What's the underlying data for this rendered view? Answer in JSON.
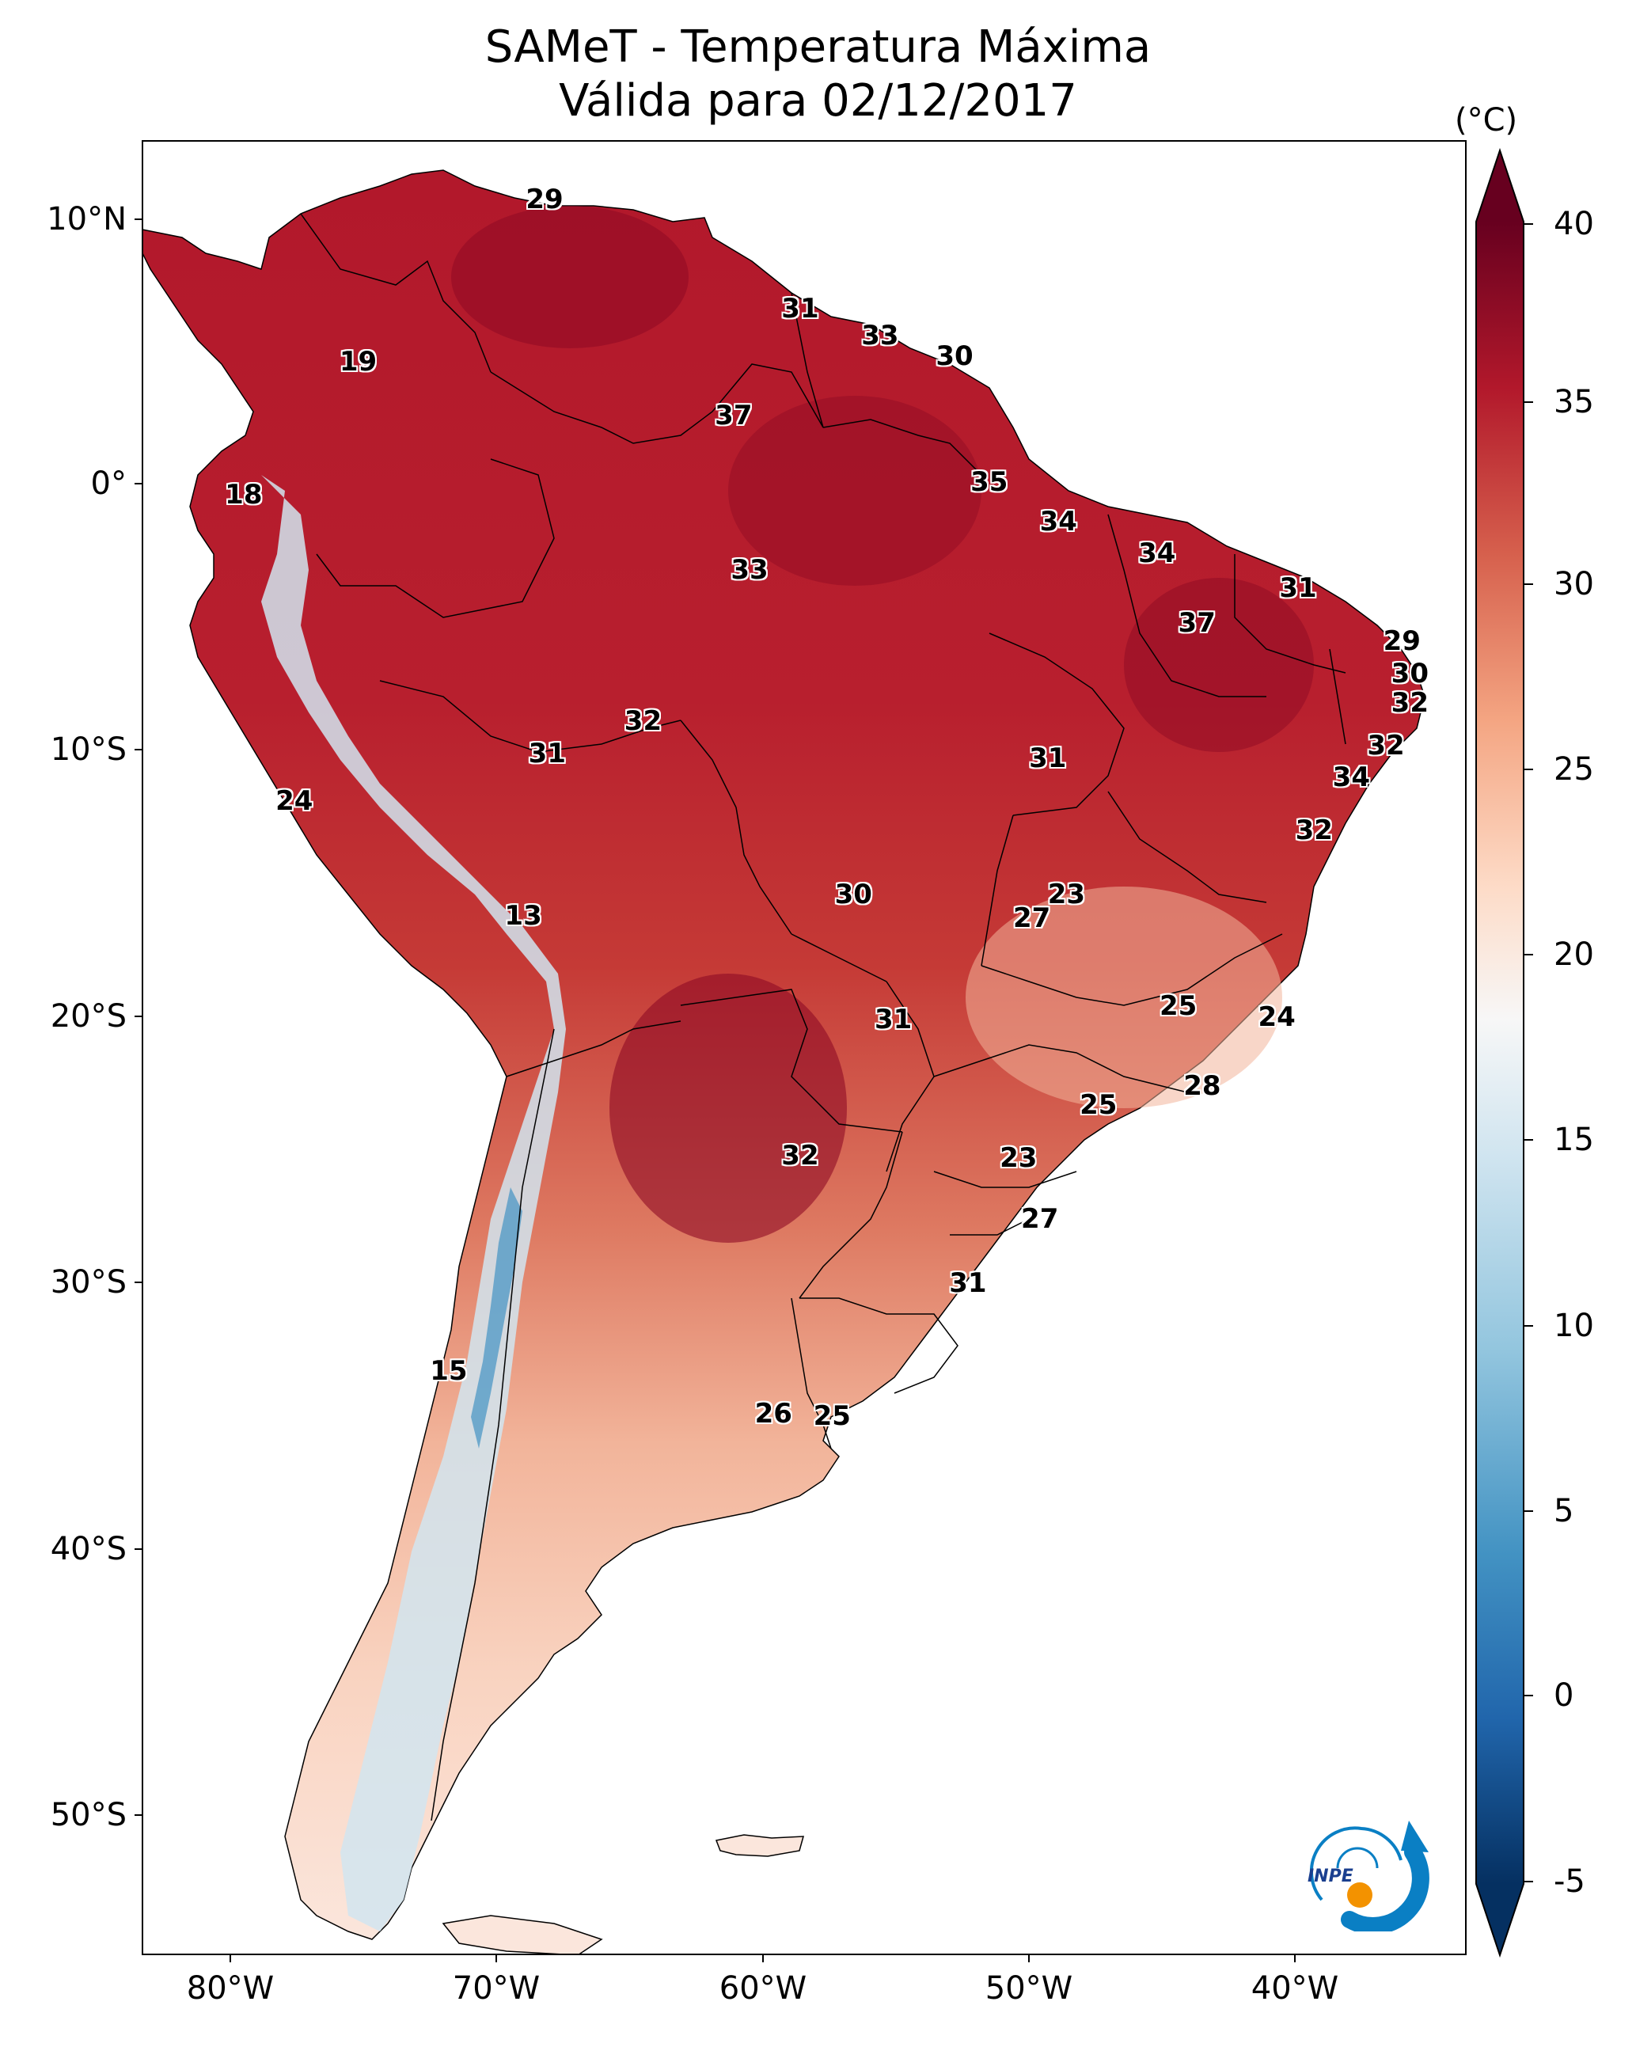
{
  "title": {
    "line1": "SAMeT - Temperatura Máxima",
    "line2": "Válida para 02/12/2017"
  },
  "map": {
    "lat_ticks": [
      "10°N",
      "0°",
      "10°S",
      "20°S",
      "30°S",
      "40°S",
      "50°S"
    ],
    "lon_ticks": [
      "80°W",
      "70°W",
      "60°W",
      "50°W",
      "40°W"
    ],
    "temperature_labels": [
      {
        "value": "29",
        "lon": -67.5,
        "lat": 10.7
      },
      {
        "value": "19",
        "lon": -74.5,
        "lat": 4.6
      },
      {
        "value": "31",
        "lon": -57.9,
        "lat": 6.6
      },
      {
        "value": "33",
        "lon": -54.9,
        "lat": 5.6
      },
      {
        "value": "30",
        "lon": -52.1,
        "lat": 4.8
      },
      {
        "value": "37",
        "lon": -60.4,
        "lat": 2.6
      },
      {
        "value": "18",
        "lon": -78.8,
        "lat": -0.4
      },
      {
        "value": "35",
        "lon": -50.8,
        "lat": 0.1
      },
      {
        "value": "34",
        "lon": -48.2,
        "lat": -1.4
      },
      {
        "value": "34",
        "lon": -44.5,
        "lat": -2.6
      },
      {
        "value": "33",
        "lon": -59.8,
        "lat": -3.2
      },
      {
        "value": "31",
        "lon": -39.2,
        "lat": -3.9
      },
      {
        "value": "37",
        "lon": -43.0,
        "lat": -5.2
      },
      {
        "value": "29",
        "lon": -35.3,
        "lat": -5.9
      },
      {
        "value": "30",
        "lon": -35.0,
        "lat": -7.1
      },
      {
        "value": "32",
        "lon": -35.0,
        "lat": -8.2
      },
      {
        "value": "32",
        "lon": -63.8,
        "lat": -8.9
      },
      {
        "value": "32",
        "lon": -35.9,
        "lat": -9.8
      },
      {
        "value": "31",
        "lon": -48.6,
        "lat": -10.3
      },
      {
        "value": "31",
        "lon": -67.4,
        "lat": -10.1
      },
      {
        "value": "34",
        "lon": -37.2,
        "lat": -11.0
      },
      {
        "value": "24",
        "lon": -76.9,
        "lat": -11.9
      },
      {
        "value": "32",
        "lon": -38.6,
        "lat": -13.0
      },
      {
        "value": "23",
        "lon": -47.9,
        "lat": -15.4
      },
      {
        "value": "30",
        "lon": -55.9,
        "lat": -15.4
      },
      {
        "value": "27",
        "lon": -49.2,
        "lat": -16.3
      },
      {
        "value": "13",
        "lon": -68.3,
        "lat": -16.2
      },
      {
        "value": "25",
        "lon": -43.7,
        "lat": -19.6
      },
      {
        "value": "24",
        "lon": -40.0,
        "lat": -20.0
      },
      {
        "value": "31",
        "lon": -54.4,
        "lat": -20.1
      },
      {
        "value": "28",
        "lon": -42.8,
        "lat": -22.6
      },
      {
        "value": "25",
        "lon": -46.7,
        "lat": -23.3
      },
      {
        "value": "23",
        "lon": -49.7,
        "lat": -25.3
      },
      {
        "value": "32",
        "lon": -57.9,
        "lat": -25.2
      },
      {
        "value": "27",
        "lon": -48.9,
        "lat": -27.6
      },
      {
        "value": "31",
        "lon": -51.6,
        "lat": -30.0
      },
      {
        "value": "15",
        "lon": -71.1,
        "lat": -33.3
      },
      {
        "value": "26",
        "lon": -58.9,
        "lat": -34.9
      },
      {
        "value": "25",
        "lon": -56.7,
        "lat": -35.0
      }
    ]
  },
  "colorbar": {
    "unit": "(°C)",
    "ticks": [
      "40",
      "35",
      "30",
      "25",
      "20",
      "15",
      "10",
      "5",
      "0",
      "-5"
    ],
    "colors": [
      "#67001f",
      "#b2182b",
      "#d6604d",
      "#f4a582",
      "#fddbc7",
      "#f7f7f7",
      "#d1e5f0",
      "#92c5de",
      "#4393c3",
      "#2166ac",
      "#053061"
    ]
  },
  "logo": {
    "text": "INPE",
    "colors": {
      "blue": "#0a7fc4",
      "orange": "#f39200"
    }
  }
}
